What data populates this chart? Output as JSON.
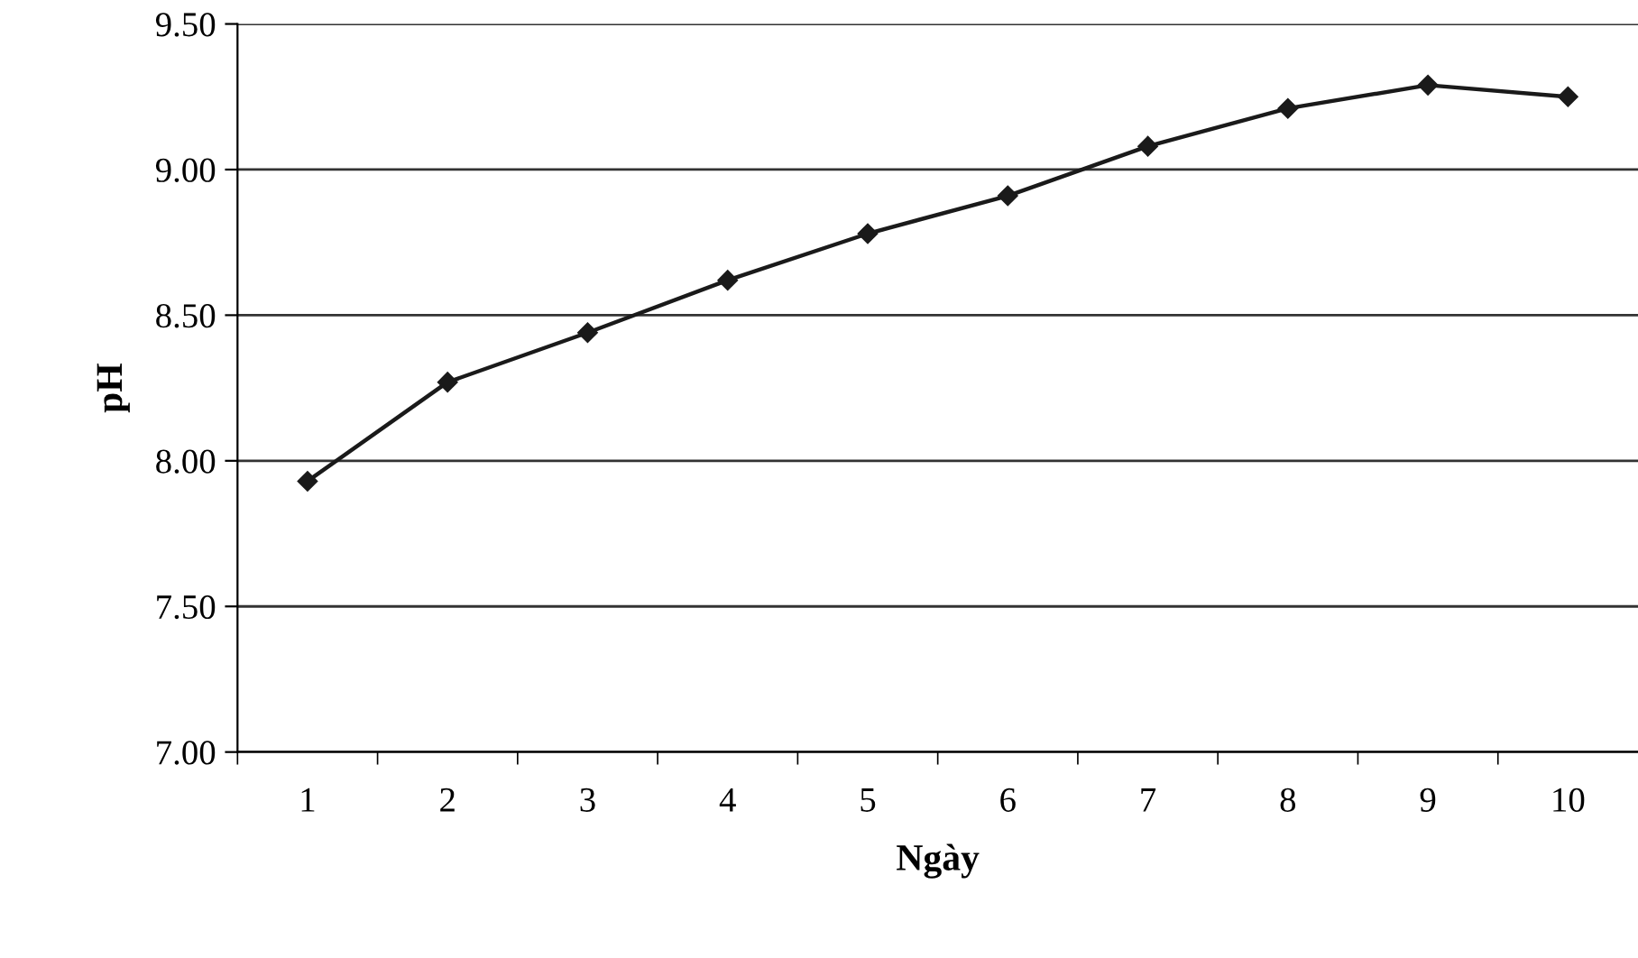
{
  "chart_data": {
    "type": "line",
    "xlabel": "Ngày",
    "ylabel": "pH",
    "categories": [
      "1",
      "2",
      "3",
      "4",
      "5",
      "6",
      "7",
      "8",
      "9",
      "10"
    ],
    "series": [
      {
        "color": "#1a1a1a",
        "values": [
          7.93,
          8.27,
          8.44,
          8.62,
          8.78,
          8.91,
          9.08,
          9.21,
          9.29,
          9.25
        ]
      }
    ],
    "ylim": [
      7.0,
      9.5
    ],
    "yticks": [
      {
        "value": 7.0,
        "label": "7.00"
      },
      {
        "value": 7.5,
        "label": "7.50"
      },
      {
        "value": 8.0,
        "label": "8.00"
      },
      {
        "value": 8.5,
        "label": "8.50"
      },
      {
        "value": 9.0,
        "label": "9.00"
      },
      {
        "value": 9.5,
        "label": "9.50"
      }
    ],
    "grid": "y",
    "marker": "diamond",
    "line_style": "solid"
  }
}
